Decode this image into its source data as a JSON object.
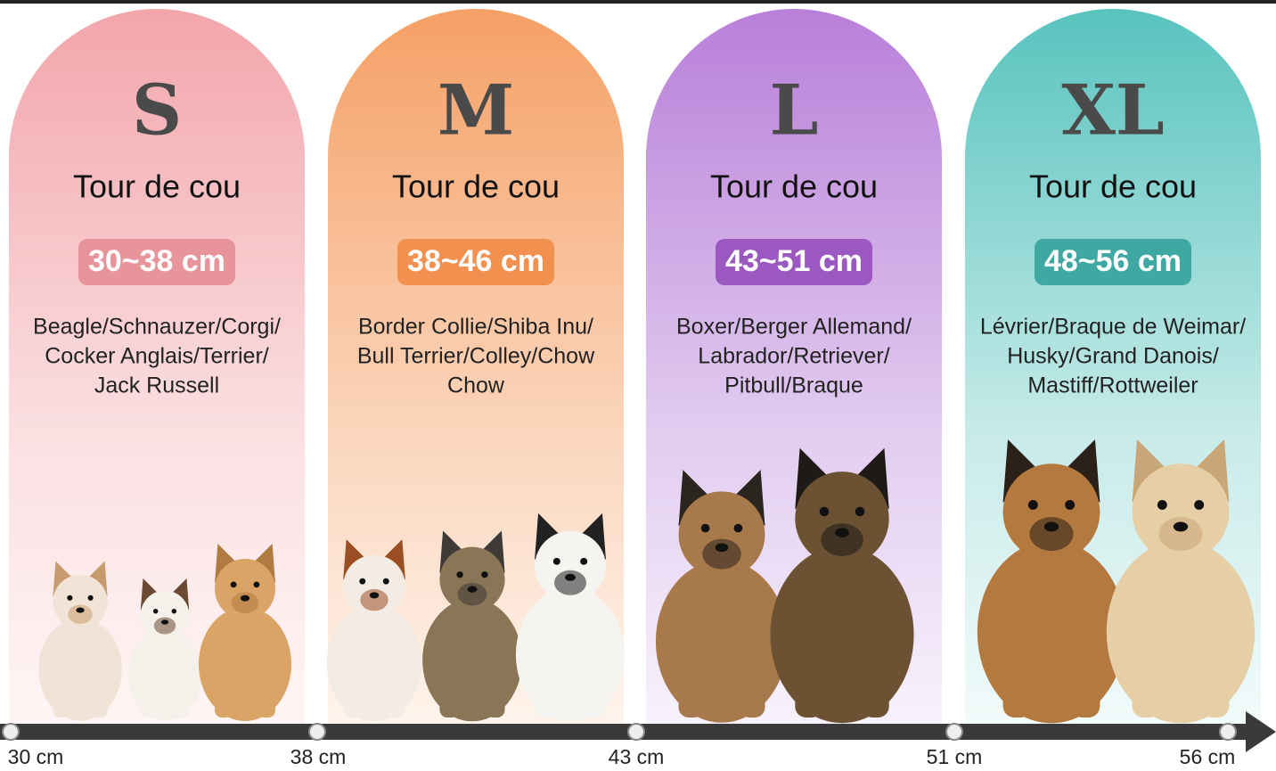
{
  "cards": [
    {
      "size": "S",
      "label": "Tour de cou",
      "range": "30~38 cm",
      "breeds": [
        "Beagle/Schnauzer/Corgi/",
        "Cocker Anglais/Terrier/",
        "Jack Russell"
      ]
    },
    {
      "size": "M",
      "label": "Tour de cou",
      "range": "38~46 cm",
      "breeds": [
        "Border Collie/Shiba Inu/",
        "Bull Terrier/Colley/Chow",
        "Chow"
      ]
    },
    {
      "size": "L",
      "label": "Tour de cou",
      "range": "43~51 cm",
      "breeds": [
        "Boxer/Berger Allemand/",
        "Labrador/Retriever/",
        "Pitbull/Braque"
      ]
    },
    {
      "size": "XL",
      "label": "Tour de cou",
      "range": "48~56 cm",
      "breeds": [
        "Lévrier/Braque de Weimar/",
        "Husky/Grand Danois/",
        "Mastiff/Rottweiler"
      ]
    }
  ],
  "scale": {
    "ticks": [
      "30 cm",
      "38 cm",
      "43 cm",
      "51 cm",
      "56 cm"
    ]
  }
}
